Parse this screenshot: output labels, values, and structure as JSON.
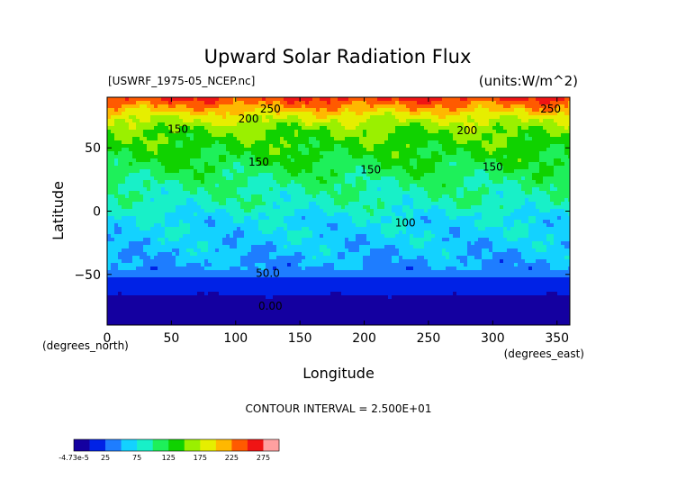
{
  "chart_data": {
    "type": "heatmap",
    "title": "Upward Solar Radiation Flux",
    "file_label": "[USWRF_1975-05_NCEP.nc]",
    "units_label": "(units:W/m^2)",
    "xlabel": "Longitude",
    "ylabel": "Latitude",
    "x_unit_note": "(degrees_east)",
    "y_unit_note": "(degrees_north)",
    "xlim": [
      0,
      360
    ],
    "ylim": [
      -90,
      90
    ],
    "x_ticks": [
      0,
      50,
      100,
      150,
      200,
      250,
      300,
      350
    ],
    "y_ticks": [
      -50,
      0,
      50
    ],
    "contour_interval_text": "CONTOUR INTERVAL = 2.500E+01",
    "contour_labels": [
      {
        "text": "250",
        "x": 127,
        "y": 78
      },
      {
        "text": "250",
        "x": 345,
        "y": 78
      },
      {
        "text": "200",
        "x": 110,
        "y": 70
      },
      {
        "text": "200",
        "x": 280,
        "y": 61
      },
      {
        "text": "150",
        "x": 55,
        "y": 62
      },
      {
        "text": "150",
        "x": 118,
        "y": 36
      },
      {
        "text": "150",
        "x": 205,
        "y": 30
      },
      {
        "text": "150",
        "x": 300,
        "y": 32
      },
      {
        "text": "100",
        "x": 232,
        "y": -12
      },
      {
        "text": "50.0",
        "x": 125,
        "y": -52
      },
      {
        "text": "0.00",
        "x": 127,
        "y": -78
      }
    ],
    "zonal_profile": [
      {
        "lat": 90,
        "value": 280
      },
      {
        "lat": 82,
        "value": 245
      },
      {
        "lat": 75,
        "value": 210
      },
      {
        "lat": 65,
        "value": 180
      },
      {
        "lat": 50,
        "value": 160
      },
      {
        "lat": 35,
        "value": 145
      },
      {
        "lat": 20,
        "value": 125
      },
      {
        "lat": 5,
        "value": 115
      },
      {
        "lat": -5,
        "value": 95
      },
      {
        "lat": -20,
        "value": 90
      },
      {
        "lat": -35,
        "value": 80
      },
      {
        "lat": -45,
        "value": 70
      },
      {
        "lat": -55,
        "value": 40
      },
      {
        "lat": -70,
        "value": 20
      },
      {
        "lat": -80,
        "value": 0
      },
      {
        "lat": -90,
        "value": 0
      }
    ],
    "colorbar": {
      "levels": [
        -4.73e-05,
        25,
        50,
        75,
        100,
        125,
        150,
        175,
        200,
        225,
        250,
        275,
        300
      ],
      "tick_labels": [
        "-4.73e-5",
        "25",
        "75",
        "125",
        "175",
        "225",
        "275"
      ],
      "colors": [
        "#1400a0",
        "#0022e6",
        "#1e7dff",
        "#13d2ff",
        "#18f0c8",
        "#1ef05a",
        "#10d200",
        "#9af000",
        "#e6ee00",
        "#ffb800",
        "#ff5a00",
        "#f01414",
        "#ffa0a0",
        "#8c0ca0"
      ]
    }
  }
}
